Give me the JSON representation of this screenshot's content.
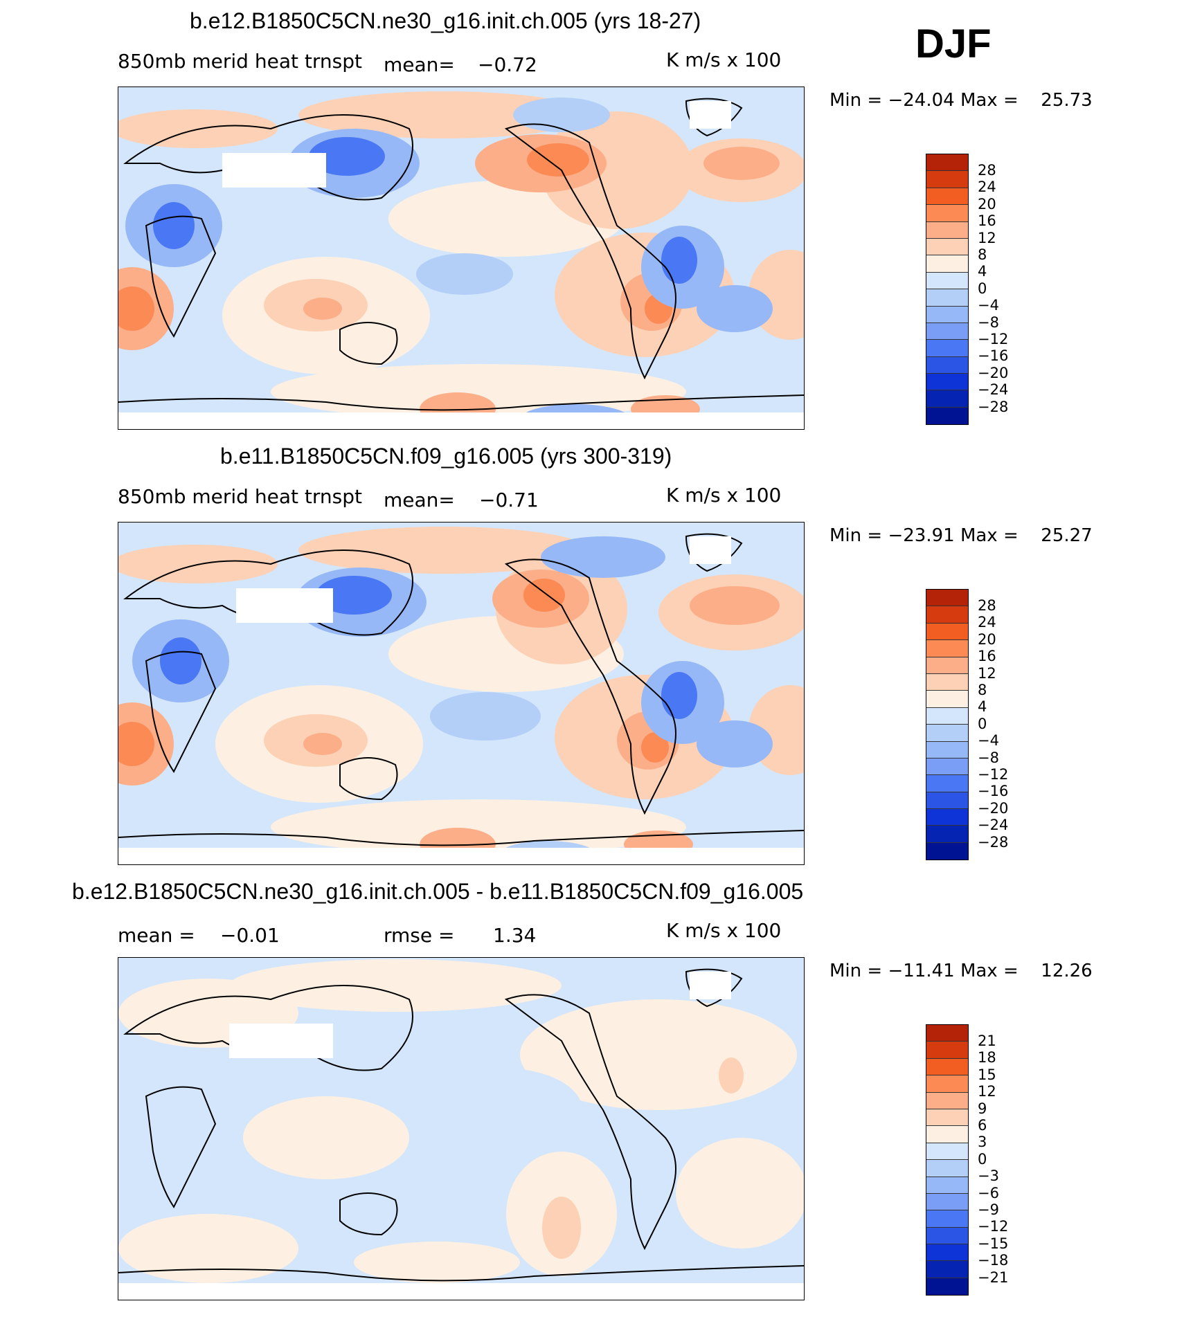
{
  "season": "DJF",
  "palette": [
    "#8b0000",
    "#b42308",
    "#d63a0f",
    "#f25e22",
    "#fb8a55",
    "#fcae89",
    "#fdd1b5",
    "#fdf0e2",
    "#d3e6fb",
    "#b3cff7",
    "#97b8f7",
    "#7a9ef6",
    "#4a77f3",
    "#2b55e5",
    "#0e33d6",
    "#0524b2",
    "#001393",
    "#000a7d"
  ],
  "panels": [
    {
      "title": "b.e12.B1850C5CN.ne30_g16.init.ch.005 (yrs 18-27)",
      "variable": "850mb merid heat trnspt",
      "mean_label": "mean=",
      "mean_value": "−0.72",
      "units": "K m/s x 100",
      "min_label": "Min =",
      "min_value": "−24.04",
      "max_label": "Max =",
      "max_value": "25.73",
      "levels": [
        "28",
        "24",
        "20",
        "16",
        "12",
        "8",
        "4",
        "0",
        "−4",
        "−8",
        "−12",
        "−16",
        "−20",
        "−24",
        "−28"
      ]
    },
    {
      "title": "b.e11.B1850C5CN.f09_g16.005 (yrs 300-319)",
      "variable": "850mb merid heat trnspt",
      "mean_label": "mean=",
      "mean_value": "−0.71",
      "units": "K m/s x 100",
      "min_label": "Min =",
      "min_value": "−23.91",
      "max_label": "Max =",
      "max_value": "25.27",
      "levels": [
        "28",
        "24",
        "20",
        "16",
        "12",
        "8",
        "4",
        "0",
        "−4",
        "−8",
        "−12",
        "−16",
        "−20",
        "−24",
        "−28"
      ]
    },
    {
      "title": "b.e12.B1850C5CN.ne30_g16.init.ch.005 - b.e11.B1850C5CN.f09_g16.005",
      "mean_label": "mean =",
      "mean_value": "−0.01",
      "rmse_label": "rmse =",
      "rmse_value": "1.34",
      "units": "K m/s x 100",
      "min_label": "Min =",
      "min_value": "−11.41",
      "max_label": "Max =",
      "max_value": "12.26",
      "levels": [
        "21",
        "18",
        "15",
        "12",
        "9",
        "6",
        "3",
        "0",
        "−3",
        "−6",
        "−9",
        "−12",
        "−15",
        "−18",
        "−21"
      ]
    }
  ]
}
